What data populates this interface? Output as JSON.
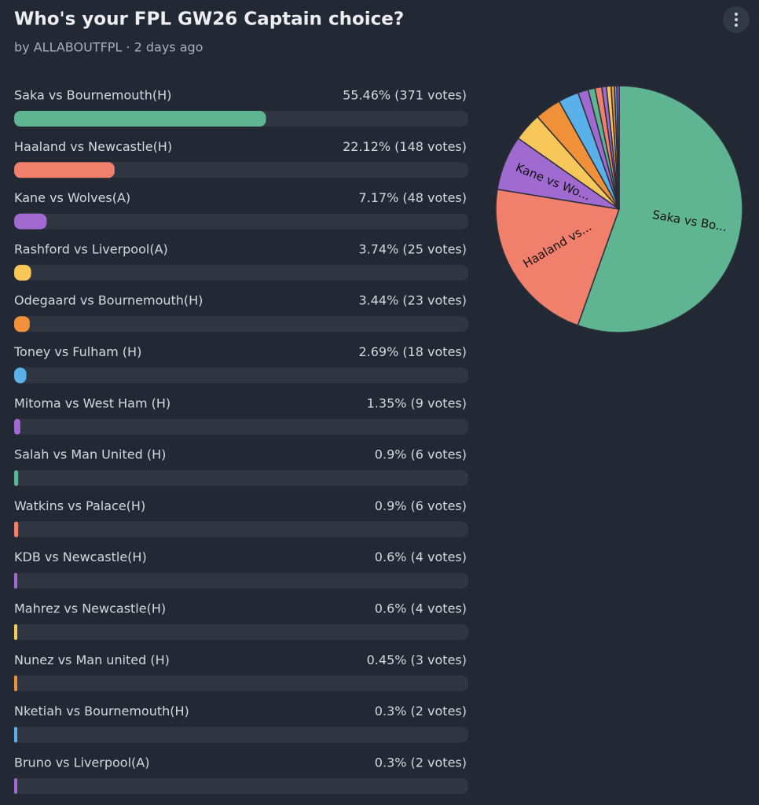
{
  "header": {
    "title": "Who's your FPL GW26 Captain choice?",
    "byline": "by ALLABOUTFPL · 2 days ago"
  },
  "options": [
    {
      "name": "Saka vs Bournemouth(H)",
      "percent": 55.46,
      "votes": 371,
      "value_label": "55.46% (371 votes)",
      "color": "#5fb491"
    },
    {
      "name": "Haaland vs Newcastle(H)",
      "percent": 22.12,
      "votes": 148,
      "value_label": "22.12% (148 votes)",
      "color": "#f07f6b"
    },
    {
      "name": "Kane vs Wolves(A)",
      "percent": 7.17,
      "votes": 48,
      "value_label": "7.17% (48 votes)",
      "color": "#a06ad0"
    },
    {
      "name": "Rashford vs Liverpool(A)",
      "percent": 3.74,
      "votes": 25,
      "value_label": "3.74% (25 votes)",
      "color": "#f7c75a"
    },
    {
      "name": "Odegaard vs Bournemouth(H)",
      "percent": 3.44,
      "votes": 23,
      "value_label": "3.44% (23 votes)",
      "color": "#f0913a"
    },
    {
      "name": "Toney vs Fulham (H)",
      "percent": 2.69,
      "votes": 18,
      "value_label": "2.69% (18 votes)",
      "color": "#5ab0e8"
    },
    {
      "name": "Mitoma vs West Ham (H)",
      "percent": 1.35,
      "votes": 9,
      "value_label": "1.35% (9 votes)",
      "color": "#a06ad0"
    },
    {
      "name": "Salah vs Man United (H)",
      "percent": 0.9,
      "votes": 6,
      "value_label": "0.9% (6 votes)",
      "color": "#5fb491"
    },
    {
      "name": "Watkins vs Palace(H)",
      "percent": 0.9,
      "votes": 6,
      "value_label": "0.9% (6 votes)",
      "color": "#f07f6b"
    },
    {
      "name": "KDB vs Newcastle(H)",
      "percent": 0.6,
      "votes": 4,
      "value_label": "0.6% (4 votes)",
      "color": "#a06ad0"
    },
    {
      "name": "Mahrez vs Newcastle(H)",
      "percent": 0.6,
      "votes": 4,
      "value_label": "0.6% (4 votes)",
      "color": "#f7c75a"
    },
    {
      "name": "Nunez vs Man united (H)",
      "percent": 0.45,
      "votes": 3,
      "value_label": "0.45% (3 votes)",
      "color": "#f0913a"
    },
    {
      "name": "Nketiah vs Bournemouth(H)",
      "percent": 0.3,
      "votes": 2,
      "value_label": "0.3% (2 votes)",
      "color": "#5ab0e8"
    },
    {
      "name": "Bruno vs Liverpool(A)",
      "percent": 0.3,
      "votes": 2,
      "value_label": "0.3% (2 votes)",
      "color": "#a06ad0"
    }
  ],
  "pie_labels": [
    "Saka vs Bo...",
    "Haaland vs...",
    "Kane vs Wo..."
  ]
}
